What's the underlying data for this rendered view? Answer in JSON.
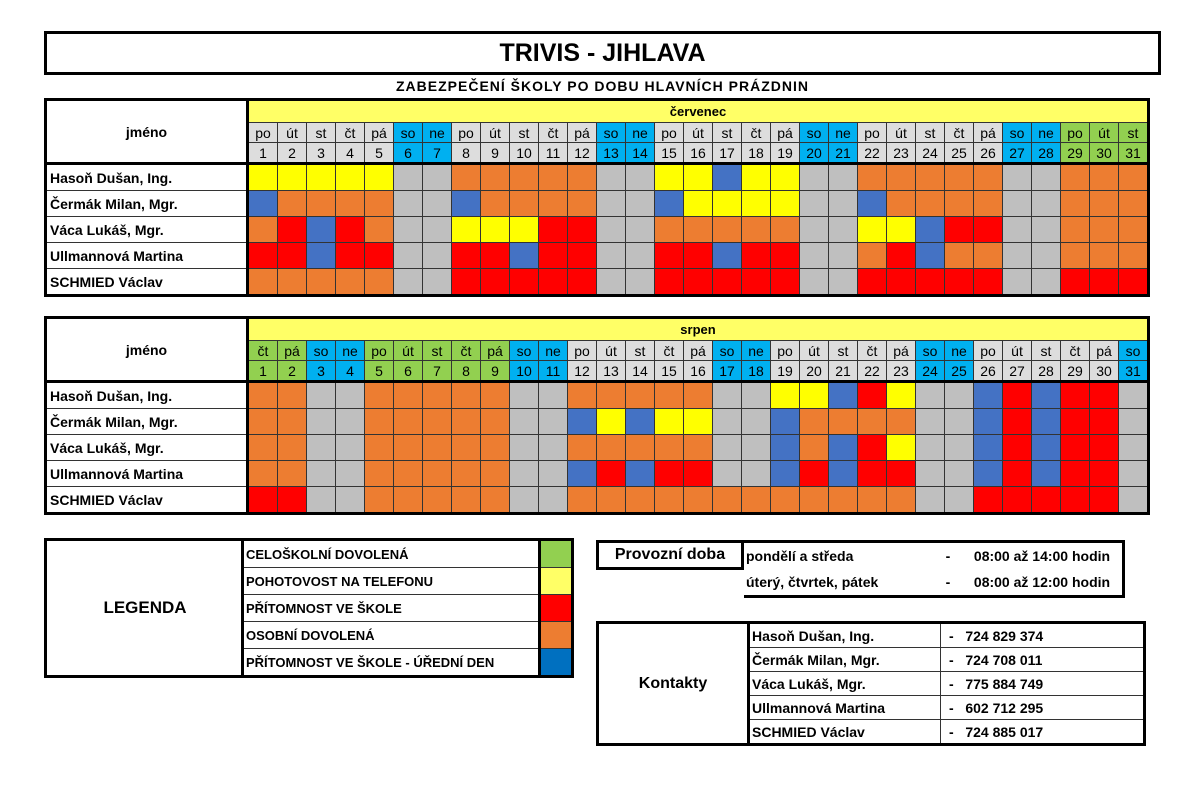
{
  "header": {
    "title": "TRIVIS - JIHLAVA",
    "subtitle": "ZABEZPEČENÍ ŠKOLY PO DOBU HLAVNÍCH PRÁZDNIN"
  },
  "colors": {
    "Y": "#ffff00",
    "O": "#ed7d31",
    "R": "#ff0000",
    "B": "#4472c4",
    "G": "#bfbfbf",
    "L": "#92d050"
  },
  "calendars": [
    {
      "month": "červenec",
      "name_header": "jméno",
      "days": [
        "po",
        "út",
        "st",
        "čt",
        "pá",
        "so",
        "ne",
        "po",
        "út",
        "st",
        "čt",
        "pá",
        "so",
        "ne",
        "po",
        "út",
        "st",
        "čt",
        "pá",
        "so",
        "ne",
        "po",
        "út",
        "st",
        "čt",
        "pá",
        "so",
        "ne",
        "po",
        "út",
        "st"
      ],
      "day_types": [
        "w",
        "w",
        "w",
        "w",
        "w",
        "b",
        "b",
        "w",
        "w",
        "w",
        "w",
        "w",
        "b",
        "b",
        "w",
        "w",
        "w",
        "w",
        "w",
        "b",
        "b",
        "w",
        "w",
        "w",
        "w",
        "w",
        "b",
        "b",
        "g",
        "g",
        "g"
      ],
      "dates": [
        "1",
        "2",
        "3",
        "4",
        "5",
        "6",
        "7",
        "8",
        "9",
        "10",
        "11",
        "12",
        "13",
        "14",
        "15",
        "16",
        "17",
        "18",
        "19",
        "20",
        "21",
        "22",
        "23",
        "24",
        "25",
        "26",
        "27",
        "28",
        "29",
        "30",
        "31"
      ],
      "rows": [
        {
          "name": "Hasoň Dušan, Ing.",
          "cells": "YYYYYGGOOOOOGGYYBYYGGOOOOOGGOOO"
        },
        {
          "name": "Čermák Milan, Mgr.",
          "cells": "BOOOOGGBOOOOGGBYYYYGGBOOOOGGOOO"
        },
        {
          "name": "Váca Lukáš, Mgr.",
          "cells": "ORBROGGYYYRRGGOOOOOGGYYBRRGGOOO"
        },
        {
          "name": "Ullmannová Martina",
          "cells": "RRBRRGGRRBRRGGRRBRRGGORBOOGGOOO"
        },
        {
          "name": "SCHMIED Václav",
          "cells": "OOOOOGGRRRRRGGRRRRRGGRRRRRGGRRR"
        }
      ]
    },
    {
      "month": "srpen",
      "name_header": "jméno",
      "days": [
        "čt",
        "pá",
        "so",
        "ne",
        "po",
        "út",
        "st",
        "čt",
        "pá",
        "so",
        "ne",
        "po",
        "út",
        "st",
        "čt",
        "pá",
        "so",
        "ne",
        "po",
        "út",
        "st",
        "čt",
        "pá",
        "so",
        "ne",
        "po",
        "út",
        "st",
        "čt",
        "pá",
        "so"
      ],
      "day_types": [
        "g",
        "g",
        "b",
        "b",
        "g",
        "g",
        "g",
        "g",
        "g",
        "b",
        "b",
        "w",
        "w",
        "w",
        "w",
        "w",
        "b",
        "b",
        "w",
        "w",
        "w",
        "w",
        "w",
        "b",
        "b",
        "w",
        "w",
        "w",
        "w",
        "w",
        "b"
      ],
      "dates": [
        "1",
        "2",
        "3",
        "4",
        "5",
        "6",
        "7",
        "8",
        "9",
        "10",
        "11",
        "12",
        "13",
        "14",
        "15",
        "16",
        "17",
        "18",
        "19",
        "20",
        "21",
        "22",
        "23",
        "24",
        "25",
        "26",
        "27",
        "28",
        "29",
        "30",
        "31"
      ],
      "rows": [
        {
          "name": "Hasoň Dušan, Ing.",
          "cells": "OOGGOOOOOGGOOOOOGGYYBRYGGBRBRRG"
        },
        {
          "name": "Čermák Milan, Mgr.",
          "cells": "OOGGOOOOOGGBYBYYGGBOOOOGGBRBRRG"
        },
        {
          "name": "Váca Lukáš, Mgr.",
          "cells": "OOGGOOOOOGGOOOOOGGBOBRYGGBRBRRG"
        },
        {
          "name": "Ullmannová Martina",
          "cells": "OOGGOOOOOGGBRBRRGGBRBRRGGBRBRRG"
        },
        {
          "name": "SCHMIED Václav",
          "cells": "RRGGOOOOOGGOOOOOOOOOOOOGGRRRRRG"
        }
      ]
    }
  ],
  "legend": {
    "title": "LEGENDA",
    "items": [
      {
        "label": "CELOŠKOLNÍ DOVOLENÁ",
        "color": "#92d050"
      },
      {
        "label": "POHOTOVOST NA TELEFONU",
        "color": "#ffff66"
      },
      {
        "label": "PŘÍTOMNOST VE ŠKOLE",
        "color": "#ff0000"
      },
      {
        "label": "OSOBNÍ  DOVOLENÁ",
        "color": "#ed7d31"
      },
      {
        "label": "PŘÍTOMNOST VE ŠKOLE - ÚŘEDNÍ DEN",
        "color": "#0070c0"
      }
    ]
  },
  "hours": {
    "title": "Provozní doba",
    "rows": [
      {
        "days": "pondělí a středa",
        "dash": "-",
        "time": "08:00 až 14:00 hodin"
      },
      {
        "days": "úterý, čtvrtek, pátek",
        "dash": "-",
        "time": "08:00 až 12:00 hodin"
      }
    ]
  },
  "contacts": {
    "title": "Kontakty",
    "rows": [
      {
        "name": "Hasoň Dušan, Ing.",
        "phone": "-   724 829 374"
      },
      {
        "name": "Čermák Milan, Mgr.",
        "phone": "-   724 708 011"
      },
      {
        "name": "Váca Lukáš, Mgr.",
        "phone": "-   775 884 749"
      },
      {
        "name": "Ullmannová Martina",
        "phone": "-   602 712 295"
      },
      {
        "name": "SCHMIED Václav",
        "phone": "-   724 885 017"
      }
    ]
  }
}
